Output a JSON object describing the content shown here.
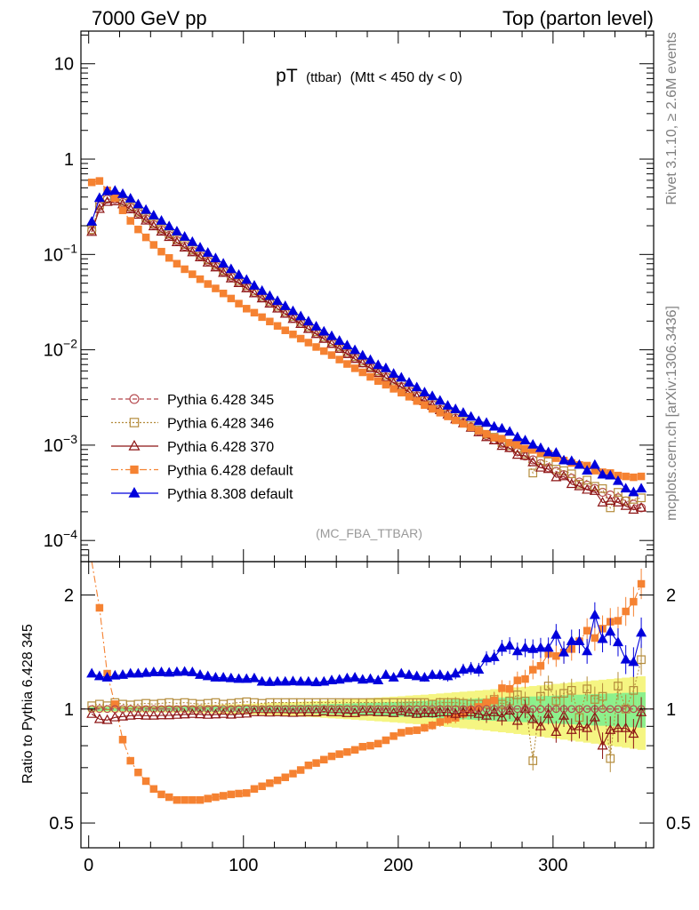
{
  "header": {
    "left": "7000 GeV pp",
    "right": "Top (parton level)"
  },
  "plot_title": {
    "main": "pT",
    "sub1": "(ttbar)",
    "sub2": "(Mtt < 450 dy < 0)"
  },
  "analysis_label": "(MC_FBA_TTBAR)",
  "side_labels": {
    "rivet": "Rivet 3.1.10, ≥ 2.6M events",
    "mcplots": "mcplots.cern.ch [arXiv:1306.3436]"
  },
  "ratio_ylabel": "Ratio to Pythia 6.428 345",
  "colors": {
    "p345": "#b4464b",
    "p346": "#b48c3c",
    "p370": "#8c1414",
    "p6def": "#f58232",
    "p8def": "#0000dc",
    "band_inner": "#8cf08c",
    "band_outer": "#f5f582"
  },
  "chart_data": [
    {
      "type": "line",
      "yscale": "log",
      "xlim": [
        -5,
        365
      ],
      "ylim": [
        6e-05,
        22
      ],
      "yticks": [
        {
          "v": 10,
          "label": "10"
        },
        {
          "v": 1,
          "label": "1"
        },
        {
          "v": 0.1,
          "base": "10",
          "exp": "−1"
        },
        {
          "v": 0.01,
          "base": "10",
          "exp": "−2"
        },
        {
          "v": 0.001,
          "base": "10",
          "exp": "−3"
        },
        {
          "v": 0.0001,
          "base": "10",
          "exp": "−4"
        }
      ],
      "legend_position": "bottom-left",
      "series": [
        {
          "key": "p345",
          "name": "Pythia 6.428 345",
          "marker": "circle-open",
          "dash": "5,3"
        },
        {
          "key": "p346",
          "name": "Pythia 6.428 346",
          "marker": "square-open",
          "dash": "2,2"
        },
        {
          "key": "p370",
          "name": "Pythia 6.428 370",
          "marker": "triangle-open",
          "dash": ""
        },
        {
          "key": "p6def",
          "name": "Pythia 6.428 default",
          "marker": "square-filled",
          "dash": "8,3,2,3"
        },
        {
          "key": "p8def",
          "name": "Pythia 8.308 default",
          "marker": "triangle-filled",
          "dash": ""
        }
      ],
      "x": [
        2,
        7,
        12,
        17,
        22,
        27,
        32,
        37,
        42,
        47,
        52,
        57,
        62,
        67,
        72,
        77,
        82,
        87,
        92,
        97,
        102,
        107,
        112,
        117,
        122,
        127,
        132,
        137,
        142,
        147,
        152,
        157,
        162,
        167,
        172,
        177,
        182,
        187,
        192,
        197,
        202,
        207,
        212,
        217,
        222,
        227,
        232,
        237,
        242,
        247,
        252,
        257,
        262,
        267,
        272,
        277,
        282,
        287,
        292,
        297,
        302,
        307,
        312,
        317,
        322,
        327,
        332,
        337,
        342,
        347,
        352,
        357
      ],
      "values": {
        "p345": [
          0.178,
          0.32,
          0.38,
          0.38,
          0.35,
          0.31,
          0.27,
          0.235,
          0.205,
          0.18,
          0.158,
          0.139,
          0.122,
          0.108,
          0.096,
          0.085,
          0.075,
          0.066,
          0.058,
          0.051,
          0.045,
          0.0398,
          0.0352,
          0.0311,
          0.0275,
          0.0243,
          0.0215,
          0.019,
          0.0168,
          0.0149,
          0.0132,
          0.0117,
          0.0104,
          0.0092,
          0.0082,
          0.0073,
          0.0065,
          0.0058,
          0.0052,
          0.0046,
          0.0041,
          0.00368,
          0.0033,
          0.00295,
          0.00265,
          0.00237,
          0.00213,
          0.00192,
          0.00172,
          0.00155,
          0.0014,
          0.00126,
          0.00114,
          0.00103,
          0.00094,
          0.00085,
          0.00077,
          0.0007,
          0.00064,
          0.00058,
          0.00053,
          0.00049,
          0.00045,
          0.00041,
          0.00038,
          0.00035,
          0.00032,
          0.0003,
          0.00028,
          0.00026,
          0.00024,
          0.00022
        ],
        "p346": [
          0.182,
          0.33,
          0.39,
          0.395,
          0.36,
          0.318,
          0.278,
          0.243,
          0.212,
          0.186,
          0.164,
          0.144,
          0.127,
          0.112,
          0.099,
          0.088,
          0.078,
          0.068,
          0.06,
          0.053,
          0.047,
          0.0413,
          0.0365,
          0.0323,
          0.0286,
          0.0253,
          0.0224,
          0.0198,
          0.0175,
          0.0155,
          0.0137,
          0.0122,
          0.0108,
          0.0096,
          0.0085,
          0.0076,
          0.0067,
          0.006,
          0.0054,
          0.0048,
          0.0043,
          0.00384,
          0.00343,
          0.00306,
          0.00274,
          0.00246,
          0.00221,
          0.00199,
          0.00178,
          0.0016,
          0.00144,
          0.0013,
          0.00121,
          0.00106,
          0.00099,
          0.00093,
          0.00081,
          0.00051,
          0.00069,
          0.00067,
          0.00056,
          0.00054,
          0.0005,
          0.00039,
          0.00043,
          0.00037,
          0.00035,
          0.00022,
          0.00032,
          0.00026,
          0.00027,
          0.00028
        ],
        "p370": [
          0.172,
          0.3,
          0.355,
          0.36,
          0.335,
          0.297,
          0.26,
          0.226,
          0.197,
          0.173,
          0.152,
          0.134,
          0.118,
          0.105,
          0.093,
          0.082,
          0.073,
          0.064,
          0.056,
          0.05,
          0.044,
          0.039,
          0.0345,
          0.0304,
          0.027,
          0.0238,
          0.021,
          0.0186,
          0.0165,
          0.0146,
          0.013,
          0.0115,
          0.0102,
          0.009,
          0.008,
          0.0072,
          0.0064,
          0.0057,
          0.0051,
          0.0045,
          0.00405,
          0.0036,
          0.0032,
          0.00288,
          0.00258,
          0.00232,
          0.00209,
          0.00186,
          0.00169,
          0.00152,
          0.00136,
          0.00121,
          0.00112,
          0.00098,
          0.00093,
          0.00079,
          0.00077,
          0.00066,
          0.00058,
          0.00056,
          0.00046,
          0.00047,
          0.00039,
          0.00037,
          0.00034,
          0.00033,
          0.00025,
          0.00026,
          0.00025,
          0.00023,
          0.00021,
          0.00022
        ],
        "p6def": [
          0.57,
          0.59,
          0.47,
          0.39,
          0.29,
          0.225,
          0.183,
          0.151,
          0.126,
          0.107,
          0.092,
          0.08,
          0.07,
          0.062,
          0.055,
          0.049,
          0.044,
          0.039,
          0.0345,
          0.0305,
          0.027,
          0.0245,
          0.022,
          0.0198,
          0.0178,
          0.016,
          0.0145,
          0.0131,
          0.0119,
          0.0107,
          0.0097,
          0.0088,
          0.0079,
          0.0071,
          0.0064,
          0.0058,
          0.0052,
          0.0047,
          0.0043,
          0.0039,
          0.00355,
          0.00322,
          0.0029,
          0.00263,
          0.0024,
          0.00219,
          0.002,
          0.00182,
          0.00167,
          0.00154,
          0.00142,
          0.00131,
          0.0012,
          0.00117,
          0.00106,
          0.00101,
          0.00092,
          0.00089,
          0.00083,
          0.00081,
          0.00073,
          0.00069,
          0.00065,
          0.00062,
          0.00061,
          0.00054,
          0.00052,
          0.00051,
          0.00048,
          0.00047,
          0.00046,
          0.00047
        ],
        "p8def": [
          0.22,
          0.39,
          0.46,
          0.465,
          0.43,
          0.385,
          0.335,
          0.293,
          0.256,
          0.225,
          0.197,
          0.174,
          0.153,
          0.135,
          0.118,
          0.104,
          0.091,
          0.08,
          0.07,
          0.061,
          0.054,
          0.047,
          0.0414,
          0.0366,
          0.0324,
          0.0287,
          0.0254,
          0.0224,
          0.0198,
          0.0175,
          0.0155,
          0.0139,
          0.0124,
          0.0111,
          0.0099,
          0.0087,
          0.0078,
          0.0069,
          0.0064,
          0.0056,
          0.0051,
          0.00452,
          0.00403,
          0.00357,
          0.00326,
          0.00292,
          0.00259,
          0.00238,
          0.00218,
          0.00198,
          0.00178,
          0.00171,
          0.00156,
          0.00149,
          0.00138,
          0.00121,
          0.00112,
          0.00101,
          0.00093,
          0.00084,
          0.00083,
          0.00069,
          0.00068,
          0.00062,
          0.00054,
          0.00062,
          0.00049,
          0.00048,
          0.00042,
          0.00035,
          0.00032,
          0.00035
        ]
      }
    },
    {
      "type": "line",
      "yscale": "log",
      "xlim": [
        -5,
        365
      ],
      "ylim": [
        0.43,
        2.45
      ],
      "ylabel": "Ratio to Pythia 6.428 345",
      "xticks": [
        0,
        100,
        200,
        300
      ],
      "yticks": [
        {
          "v": 2,
          "label": "2"
        },
        {
          "v": 1,
          "label": "1"
        },
        {
          "v": 0.5,
          "label": "0.5"
        }
      ],
      "x": [
        2,
        7,
        12,
        17,
        22,
        27,
        32,
        37,
        42,
        47,
        52,
        57,
        62,
        67,
        72,
        77,
        82,
        87,
        92,
        97,
        102,
        107,
        112,
        117,
        122,
        127,
        132,
        137,
        142,
        147,
        152,
        157,
        162,
        167,
        172,
        177,
        182,
        187,
        192,
        197,
        202,
        207,
        212,
        217,
        222,
        227,
        232,
        237,
        242,
        247,
        252,
        257,
        262,
        267,
        272,
        277,
        282,
        287,
        292,
        297,
        302,
        307,
        312,
        317,
        322,
        327,
        332,
        337,
        342,
        347,
        352,
        357
      ],
      "band_inner_halfwidth": [
        0.012,
        0.012,
        0.012,
        0.012,
        0.012,
        0.012,
        0.012,
        0.012,
        0.013,
        0.013,
        0.013,
        0.014,
        0.014,
        0.015,
        0.015,
        0.016,
        0.016,
        0.017,
        0.018,
        0.018,
        0.019,
        0.02,
        0.021,
        0.022,
        0.023,
        0.024,
        0.025,
        0.026,
        0.027,
        0.028,
        0.03,
        0.031,
        0.032,
        0.034,
        0.035,
        0.037,
        0.038,
        0.04,
        0.042,
        0.044,
        0.045,
        0.047,
        0.049,
        0.051,
        0.053,
        0.055,
        0.057,
        0.059,
        0.061,
        0.063,
        0.065,
        0.067,
        0.069,
        0.071,
        0.073,
        0.075,
        0.077,
        0.079,
        0.081,
        0.083,
        0.085,
        0.087,
        0.089,
        0.091,
        0.093,
        0.095,
        0.097,
        0.099,
        0.101,
        0.103,
        0.105,
        0.107
      ],
      "band_outer_halfwidth": [
        0.02,
        0.02,
        0.02,
        0.02,
        0.02,
        0.02,
        0.02,
        0.021,
        0.021,
        0.021,
        0.022,
        0.022,
        0.023,
        0.024,
        0.025,
        0.026,
        0.027,
        0.028,
        0.029,
        0.03,
        0.032,
        0.034,
        0.035,
        0.037,
        0.039,
        0.041,
        0.043,
        0.045,
        0.047,
        0.049,
        0.052,
        0.055,
        0.057,
        0.06,
        0.063,
        0.066,
        0.069,
        0.072,
        0.075,
        0.078,
        0.081,
        0.085,
        0.088,
        0.091,
        0.095,
        0.099,
        0.103,
        0.107,
        0.111,
        0.115,
        0.119,
        0.123,
        0.128,
        0.132,
        0.136,
        0.141,
        0.145,
        0.15,
        0.155,
        0.16,
        0.165,
        0.17,
        0.175,
        0.18,
        0.185,
        0.19,
        0.195,
        0.2,
        0.205,
        0.21,
        0.215,
        0.22
      ],
      "ratio_values": {
        "p346": [
          1.02,
          1.03,
          1.02,
          1.04,
          1.03,
          1.025,
          1.03,
          1.035,
          1.03,
          1.035,
          1.04,
          1.035,
          1.04,
          1.035,
          1.03,
          1.035,
          1.04,
          1.03,
          1.035,
          1.04,
          1.045,
          1.04,
          1.035,
          1.04,
          1.04,
          1.04,
          1.04,
          1.04,
          1.04,
          1.04,
          1.04,
          1.04,
          1.04,
          1.04,
          1.04,
          1.04,
          1.04,
          1.04,
          1.04,
          1.04,
          1.04,
          1.04,
          1.04,
          1.04,
          1.03,
          1.04,
          1.04,
          1.04,
          1.035,
          1.03,
          1.03,
          1.03,
          1.06,
          1.03,
          1.05,
          1.09,
          1.05,
          0.73,
          1.08,
          1.15,
          1.05,
          1.1,
          1.12,
          0.95,
          1.13,
          1.06,
          1.08,
          0.74,
          1.15,
          1.0,
          1.12,
          1.35
        ],
        "p370": [
          0.97,
          0.94,
          0.935,
          0.95,
          0.955,
          0.96,
          0.963,
          0.96,
          0.96,
          0.962,
          0.962,
          0.965,
          0.967,
          0.97,
          0.968,
          0.965,
          0.967,
          0.97,
          0.966,
          0.97,
          0.972,
          0.98,
          0.98,
          0.978,
          0.98,
          0.978,
          0.976,
          0.978,
          0.98,
          0.979,
          0.985,
          0.98,
          0.98,
          0.975,
          0.975,
          0.983,
          0.984,
          0.98,
          0.98,
          0.975,
          0.987,
          0.978,
          0.97,
          0.975,
          0.974,
          0.98,
          0.98,
          0.97,
          0.98,
          0.98,
          0.97,
          0.96,
          0.98,
          0.95,
          0.99,
          0.93,
          1.0,
          0.94,
          0.9,
          0.97,
          0.87,
          0.96,
          0.88,
          0.9,
          0.89,
          0.95,
          0.8,
          0.88,
          0.89,
          0.89,
          0.86,
          0.98
        ],
        "p6def": [
          3.2,
          1.85,
          1.24,
          1.03,
          0.83,
          0.73,
          0.68,
          0.645,
          0.615,
          0.595,
          0.585,
          0.575,
          0.575,
          0.575,
          0.575,
          0.58,
          0.585,
          0.59,
          0.595,
          0.598,
          0.6,
          0.615,
          0.625,
          0.637,
          0.648,
          0.66,
          0.675,
          0.69,
          0.71,
          0.72,
          0.735,
          0.75,
          0.76,
          0.77,
          0.78,
          0.795,
          0.8,
          0.81,
          0.827,
          0.848,
          0.866,
          0.875,
          0.879,
          0.892,
          0.905,
          0.924,
          0.939,
          0.948,
          0.971,
          0.994,
          1.013,
          1.04,
          1.053,
          1.135,
          1.13,
          1.19,
          1.2,
          1.27,
          1.3,
          1.4,
          1.38,
          1.41,
          1.44,
          1.51,
          1.61,
          1.54,
          1.63,
          1.7,
          1.71,
          1.81,
          1.92,
          2.14
        ],
        "p8def": [
          1.24,
          1.22,
          1.21,
          1.225,
          1.23,
          1.24,
          1.24,
          1.245,
          1.25,
          1.25,
          1.247,
          1.252,
          1.254,
          1.25,
          1.23,
          1.22,
          1.21,
          1.21,
          1.205,
          1.2,
          1.2,
          1.205,
          1.18,
          1.178,
          1.18,
          1.18,
          1.183,
          1.18,
          1.18,
          1.176,
          1.18,
          1.19,
          1.195,
          1.205,
          1.21,
          1.195,
          1.2,
          1.19,
          1.23,
          1.21,
          1.24,
          1.23,
          1.22,
          1.21,
          1.23,
          1.23,
          1.22,
          1.24,
          1.27,
          1.28,
          1.27,
          1.36,
          1.37,
          1.45,
          1.47,
          1.42,
          1.45,
          1.44,
          1.45,
          1.45,
          1.57,
          1.41,
          1.51,
          1.51,
          1.42,
          1.77,
          1.53,
          1.6,
          1.5,
          1.35,
          1.33,
          1.59
        ]
      }
    }
  ]
}
